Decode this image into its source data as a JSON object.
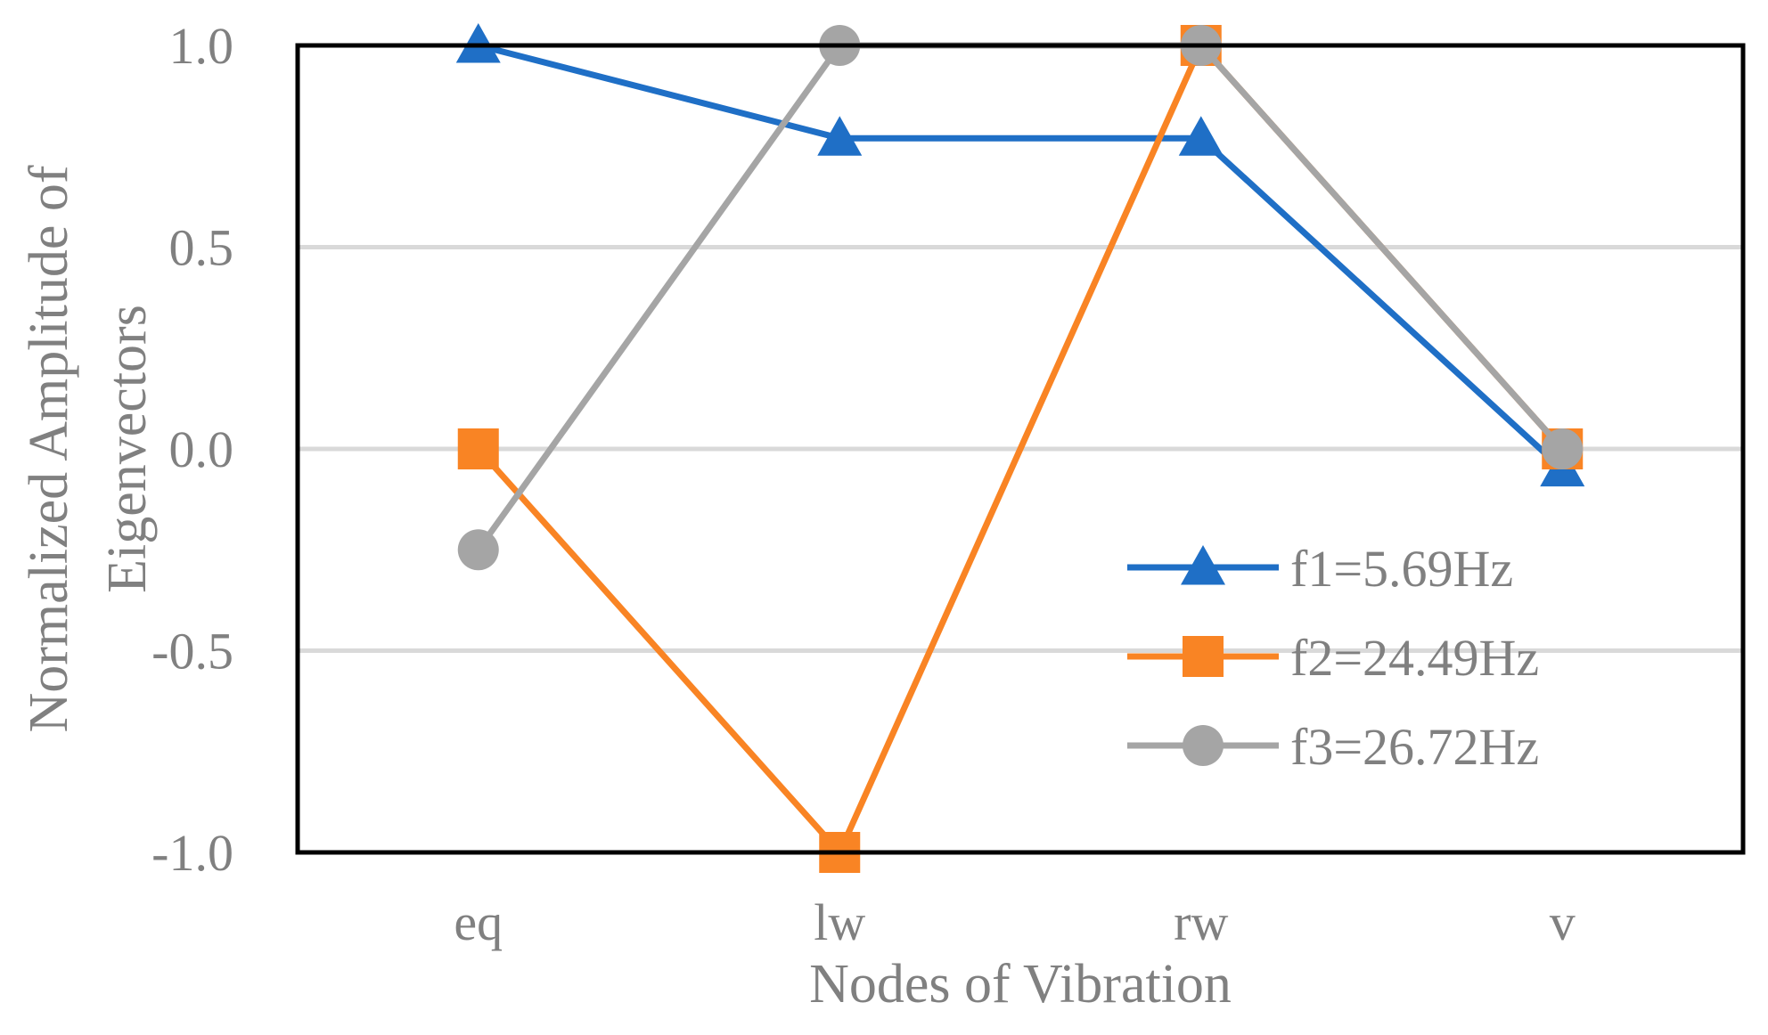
{
  "chart_data": {
    "type": "line",
    "title": "",
    "xlabel": "Nodes of Vibration",
    "ylabel_lines": [
      "Normalized Amplitude of",
      "Eigenvectors"
    ],
    "categories": [
      "eq",
      "lw",
      "rw",
      "v"
    ],
    "ylim": [
      -1.0,
      1.0
    ],
    "yticks": [
      1.0,
      0.5,
      0.0,
      -0.5,
      -1.0
    ],
    "ytick_labels": [
      "1.0",
      "0.5",
      "0.0",
      "-0.5",
      "-1.0"
    ],
    "grid": true,
    "legend_position": "bottom-right",
    "series": [
      {
        "name": "f1=5.69Hz",
        "marker": "triangle",
        "color": "#1f6fc6",
        "values": [
          1.0,
          0.77,
          0.77,
          -0.05
        ]
      },
      {
        "name": "f2=24.49Hz",
        "marker": "square",
        "color": "#f98424",
        "values": [
          0.0,
          -1.0,
          1.0,
          0.0
        ]
      },
      {
        "name": "f3=26.72Hz",
        "marker": "circle",
        "color": "#a5a5a5",
        "values": [
          -0.25,
          1.0,
          1.0,
          0.0
        ]
      }
    ]
  }
}
